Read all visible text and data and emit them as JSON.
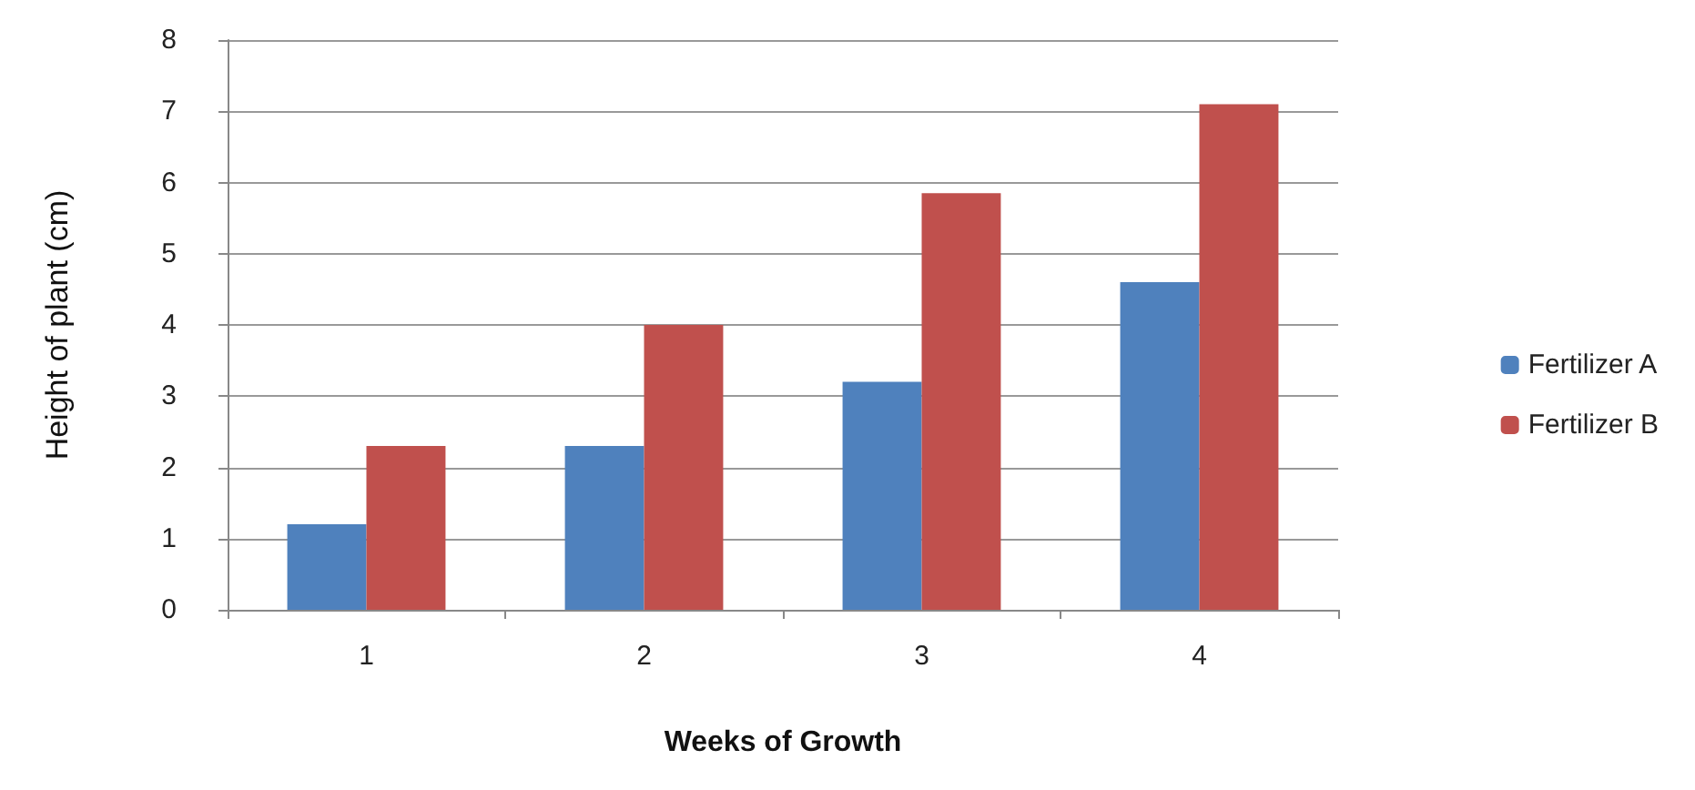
{
  "chart_data": {
    "type": "bar",
    "xlabel": "Weeks of Growth",
    "ylabel": "Height of plant (cm)",
    "categories": [
      "1",
      "2",
      "3",
      "4"
    ],
    "series": [
      {
        "name": "Fertilizer A",
        "color": "#4f81bd",
        "values": [
          1.2,
          2.3,
          3.2,
          4.6
        ]
      },
      {
        "name": "Fertilizer B",
        "color": "#c0504d",
        "values": [
          2.3,
          4.0,
          5.85,
          7.1
        ]
      }
    ],
    "ylim": [
      0,
      8
    ],
    "yticks": [
      0,
      1,
      2,
      3,
      4,
      5,
      6,
      7,
      8
    ],
    "grid": "y",
    "legend": "right"
  }
}
